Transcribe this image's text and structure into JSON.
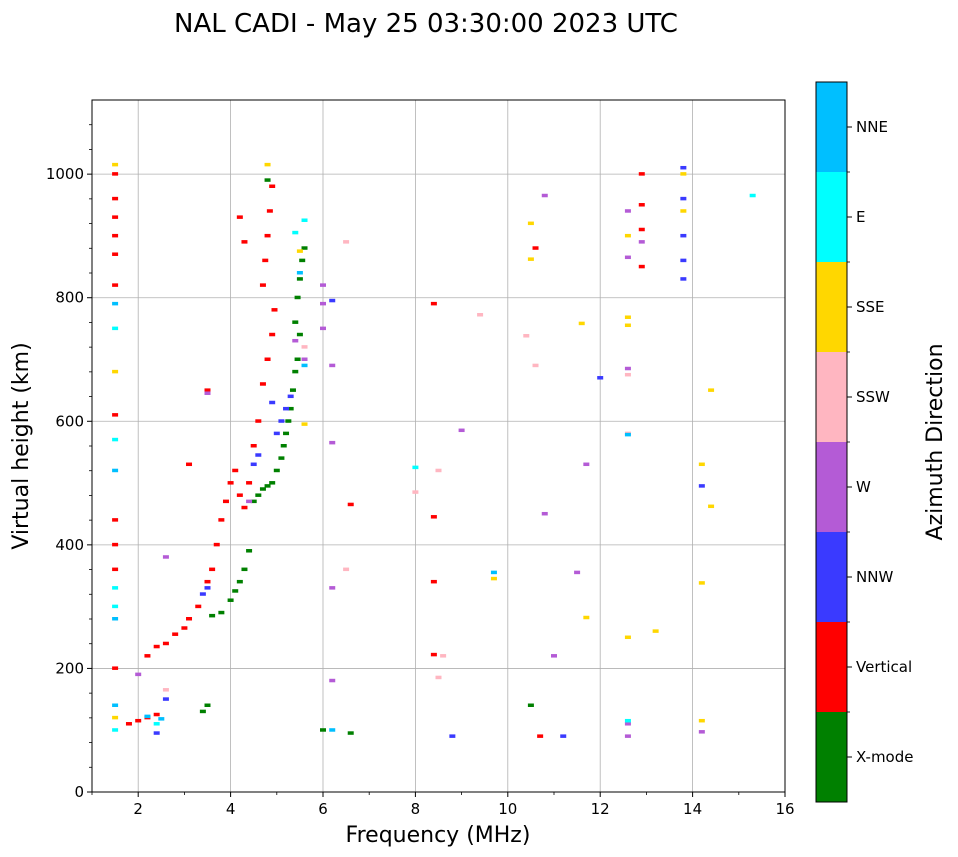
{
  "chart_data": {
    "type": "scatter",
    "title": "NAL CADI - May 25 03:30:00 2023 UTC",
    "xlabel": "Frequency (MHz)",
    "ylabel": "Virtual height (km)",
    "xlim": [
      1,
      16
    ],
    "ylim": [
      0,
      1120
    ],
    "x_ticks": [
      2,
      4,
      6,
      8,
      10,
      12,
      14,
      16
    ],
    "y_ticks": [
      0,
      200,
      400,
      600,
      800,
      1000
    ],
    "grid": true,
    "colorbar": {
      "label": "Azimuth Direction",
      "categories": [
        {
          "name": "X-mode",
          "color": "#008000"
        },
        {
          "name": "Vertical",
          "color": "#ff0000"
        },
        {
          "name": "NNW",
          "color": "#3a3aff"
        },
        {
          "name": "W",
          "color": "#b45bd6"
        },
        {
          "name": "SSW",
          "color": "#ffb6c1"
        },
        {
          "name": "SSE",
          "color": "#ffd700"
        },
        {
          "name": "E",
          "color": "#00ffff"
        },
        {
          "name": "NNE",
          "color": "#00bfff"
        }
      ]
    },
    "series": [
      {
        "name": "X-mode",
        "points": [
          [
            3.4,
            130
          ],
          [
            3.5,
            140
          ],
          [
            3.6,
            285
          ],
          [
            3.8,
            290
          ],
          [
            4.0,
            310
          ],
          [
            4.1,
            325
          ],
          [
            4.2,
            340
          ],
          [
            4.3,
            360
          ],
          [
            4.4,
            390
          ],
          [
            4.5,
            470
          ],
          [
            4.6,
            480
          ],
          [
            4.7,
            490
          ],
          [
            4.8,
            495
          ],
          [
            4.9,
            500
          ],
          [
            5.0,
            520
          ],
          [
            5.1,
            540
          ],
          [
            5.15,
            560
          ],
          [
            5.2,
            580
          ],
          [
            5.25,
            600
          ],
          [
            5.3,
            620
          ],
          [
            5.35,
            650
          ],
          [
            5.4,
            680
          ],
          [
            5.45,
            700
          ],
          [
            5.5,
            740
          ],
          [
            5.4,
            760
          ],
          [
            5.45,
            800
          ],
          [
            5.5,
            830
          ],
          [
            5.55,
            860
          ],
          [
            5.6,
            880
          ],
          [
            4.8,
            990
          ],
          [
            6.0,
            100
          ],
          [
            6.6,
            95
          ],
          [
            10.5,
            140
          ]
        ]
      },
      {
        "name": "Vertical",
        "points": [
          [
            1.5,
            1000
          ],
          [
            1.5,
            960
          ],
          [
            1.5,
            930
          ],
          [
            1.5,
            900
          ],
          [
            1.5,
            870
          ],
          [
            1.5,
            820
          ],
          [
            1.5,
            610
          ],
          [
            1.5,
            440
          ],
          [
            1.5,
            400
          ],
          [
            1.5,
            360
          ],
          [
            1.5,
            200
          ],
          [
            1.8,
            110
          ],
          [
            2.0,
            115
          ],
          [
            2.2,
            120
          ],
          [
            2.4,
            125
          ],
          [
            2.2,
            220
          ],
          [
            2.4,
            235
          ],
          [
            2.6,
            240
          ],
          [
            2.8,
            255
          ],
          [
            3.0,
            265
          ],
          [
            3.1,
            280
          ],
          [
            3.3,
            300
          ],
          [
            3.5,
            340
          ],
          [
            3.6,
            360
          ],
          [
            3.7,
            400
          ],
          [
            3.8,
            440
          ],
          [
            3.9,
            470
          ],
          [
            4.0,
            500
          ],
          [
            4.1,
            520
          ],
          [
            4.2,
            480
          ],
          [
            4.3,
            460
          ],
          [
            4.4,
            500
          ],
          [
            4.5,
            560
          ],
          [
            4.6,
            600
          ],
          [
            4.7,
            660
          ],
          [
            4.8,
            700
          ],
          [
            4.9,
            740
          ],
          [
            4.95,
            780
          ],
          [
            4.7,
            820
          ],
          [
            4.75,
            860
          ],
          [
            4.8,
            900
          ],
          [
            4.85,
            940
          ],
          [
            4.9,
            980
          ],
          [
            4.3,
            890
          ],
          [
            4.2,
            930
          ],
          [
            3.5,
            650
          ],
          [
            3.1,
            530
          ],
          [
            6.6,
            465
          ],
          [
            8.4,
            790
          ],
          [
            8.4,
            445
          ],
          [
            8.4,
            340
          ],
          [
            8.4,
            222
          ],
          [
            10.6,
            880
          ],
          [
            10.7,
            90
          ],
          [
            12.9,
            1000
          ],
          [
            12.9,
            950
          ],
          [
            12.9,
            910
          ],
          [
            12.9,
            850
          ]
        ]
      },
      {
        "name": "NNW",
        "points": [
          [
            2.4,
            95
          ],
          [
            2.6,
            150
          ],
          [
            3.4,
            320
          ],
          [
            3.5,
            330
          ],
          [
            4.5,
            530
          ],
          [
            4.6,
            545
          ],
          [
            5.0,
            580
          ],
          [
            5.1,
            600
          ],
          [
            5.2,
            620
          ],
          [
            5.3,
            640
          ],
          [
            4.9,
            630
          ],
          [
            6.2,
            795
          ],
          [
            8.8,
            90
          ],
          [
            11.2,
            90
          ],
          [
            12.0,
            670
          ],
          [
            13.8,
            1010
          ],
          [
            13.8,
            960
          ],
          [
            13.8,
            900
          ],
          [
            13.8,
            860
          ],
          [
            13.8,
            830
          ],
          [
            14.2,
            495
          ]
        ]
      },
      {
        "name": "W",
        "points": [
          [
            2.0,
            190
          ],
          [
            2.6,
            380
          ],
          [
            3.5,
            645
          ],
          [
            4.4,
            470
          ],
          [
            5.4,
            730
          ],
          [
            5.6,
            700
          ],
          [
            6.0,
            820
          ],
          [
            6.0,
            790
          ],
          [
            6.0,
            750
          ],
          [
            6.2,
            690
          ],
          [
            6.2,
            565
          ],
          [
            6.2,
            330
          ],
          [
            6.2,
            180
          ],
          [
            9.0,
            585
          ],
          [
            10.8,
            965
          ],
          [
            10.8,
            450
          ],
          [
            11.0,
            220
          ],
          [
            11.5,
            355
          ],
          [
            11.7,
            530
          ],
          [
            12.6,
            940
          ],
          [
            12.6,
            865
          ],
          [
            12.6,
            685
          ],
          [
            12.6,
            110
          ],
          [
            12.6,
            90
          ],
          [
            12.9,
            890
          ],
          [
            14.2,
            97
          ]
        ]
      },
      {
        "name": "SSW",
        "points": [
          [
            2.6,
            165
          ],
          [
            5.6,
            720
          ],
          [
            6.5,
            890
          ],
          [
            6.5,
            360
          ],
          [
            8.0,
            485
          ],
          [
            8.5,
            520
          ],
          [
            8.5,
            185
          ],
          [
            8.6,
            220
          ],
          [
            9.4,
            772
          ],
          [
            10.4,
            738
          ],
          [
            10.6,
            690
          ],
          [
            12.6,
            675
          ],
          [
            12.6,
            580
          ]
        ]
      },
      {
        "name": "SSE",
        "points": [
          [
            1.5,
            1015
          ],
          [
            1.5,
            680
          ],
          [
            1.5,
            120
          ],
          [
            4.8,
            1015
          ],
          [
            5.5,
            875
          ],
          [
            5.6,
            595
          ],
          [
            9.7,
            345
          ],
          [
            10.5,
            920
          ],
          [
            10.5,
            862
          ],
          [
            11.6,
            758
          ],
          [
            11.7,
            282
          ],
          [
            12.6,
            900
          ],
          [
            12.6,
            768
          ],
          [
            12.6,
            755
          ],
          [
            12.6,
            250
          ],
          [
            13.2,
            260
          ],
          [
            13.8,
            1000
          ],
          [
            13.8,
            940
          ],
          [
            14.2,
            530
          ],
          [
            14.2,
            338
          ],
          [
            14.2,
            115
          ],
          [
            14.4,
            650
          ],
          [
            14.4,
            462
          ]
        ]
      },
      {
        "name": "E",
        "points": [
          [
            1.5,
            750
          ],
          [
            1.5,
            570
          ],
          [
            1.5,
            330
          ],
          [
            1.5,
            300
          ],
          [
            1.5,
            100
          ],
          [
            2.4,
            110
          ],
          [
            5.4,
            905
          ],
          [
            5.6,
            925
          ],
          [
            8.0,
            525
          ],
          [
            15.3,
            965
          ],
          [
            12.6,
            115
          ]
        ]
      },
      {
        "name": "NNE",
        "points": [
          [
            1.5,
            790
          ],
          [
            1.5,
            520
          ],
          [
            1.5,
            280
          ],
          [
            1.5,
            140
          ],
          [
            2.5,
            118
          ],
          [
            2.2,
            122
          ],
          [
            5.5,
            840
          ],
          [
            5.6,
            690
          ],
          [
            6.2,
            100
          ],
          [
            9.7,
            355
          ],
          [
            12.6,
            578
          ]
        ]
      }
    ]
  }
}
